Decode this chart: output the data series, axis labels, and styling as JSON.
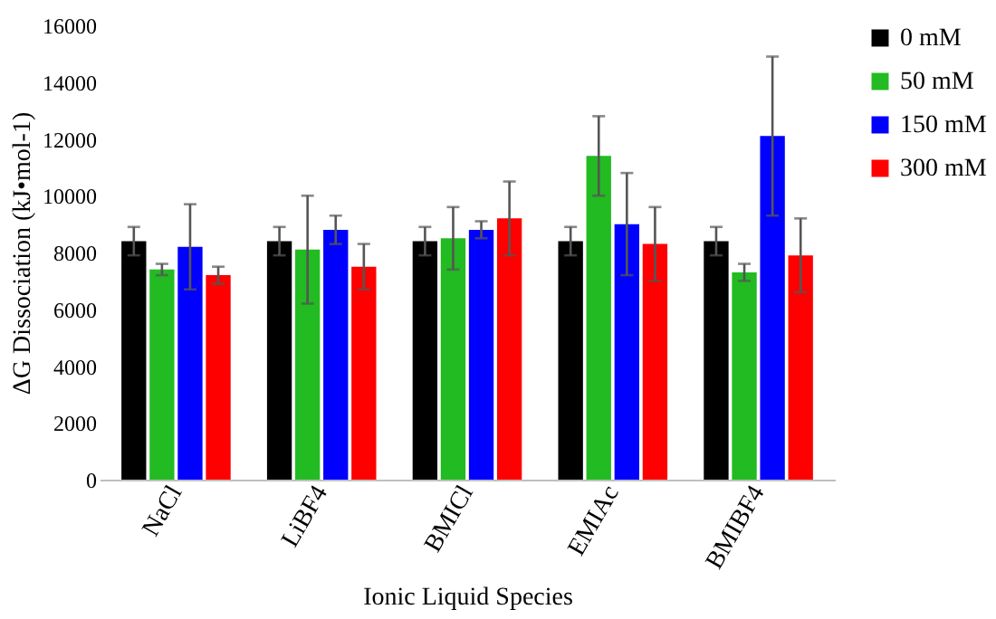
{
  "chart_data": {
    "type": "bar",
    "xlabel": "Ionic Liquid Species",
    "ylabel": "ΔG Dissociation (kJ•mol-1)",
    "categories": [
      "NaCl",
      "LiBF4",
      "BMICl",
      "EMIAc",
      "BMIBF4"
    ],
    "series": [
      {
        "name": "0 mM",
        "color": "#000000",
        "values": [
          8400,
          8400,
          8400,
          8400,
          8400
        ],
        "errors": [
          500,
          500,
          500,
          500,
          500
        ]
      },
      {
        "name": "50 mM",
        "color": "#22bb22",
        "values": [
          7400,
          8100,
          8500,
          11400,
          7300
        ],
        "errors": [
          200,
          1900,
          1100,
          1400,
          300
        ]
      },
      {
        "name": "150 mM",
        "color": "#0000ff",
        "values": [
          8200,
          8800,
          8800,
          9000,
          12100
        ],
        "errors": [
          1500,
          500,
          300,
          1800,
          2800
        ]
      },
      {
        "name": "300 mM",
        "color": "#ff0000",
        "values": [
          7200,
          7500,
          9200,
          8300,
          7900
        ],
        "errors": [
          300,
          800,
          1300,
          1300,
          1300
        ]
      }
    ],
    "ylim": [
      0,
      16000
    ],
    "yticks": [
      0,
      2000,
      4000,
      6000,
      8000,
      10000,
      12000,
      14000,
      16000
    ],
    "grid": false,
    "legend": "right"
  }
}
